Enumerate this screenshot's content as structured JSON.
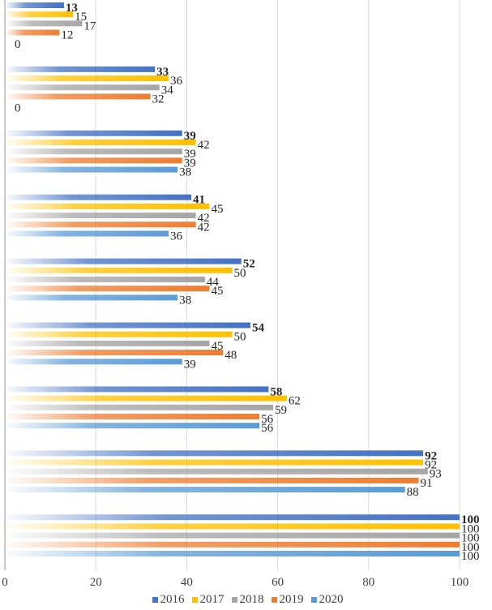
{
  "chart_data": {
    "type": "bar",
    "orientation": "horizontal",
    "title": "",
    "xlabel": "",
    "ylabel": "",
    "xlim": [
      0,
      100
    ],
    "x_ticks": [
      "0",
      "20",
      "40",
      "60",
      "80",
      "100"
    ],
    "grid": true,
    "legend_position": "bottom",
    "categories": [
      "",
      "",
      "",
      "",
      "",
      "",
      "",
      "",
      ""
    ],
    "series": [
      {
        "name": "2016",
        "color": "#4472C4",
        "bold_labels": true,
        "values": [
          13,
          33,
          39,
          41,
          52,
          54,
          58,
          92,
          100
        ]
      },
      {
        "name": "2017",
        "color": "#FFC000",
        "bold_labels": false,
        "values": [
          15,
          36,
          42,
          45,
          50,
          50,
          62,
          92,
          100
        ]
      },
      {
        "name": "2018",
        "color": "#A5A5A5",
        "bold_labels": false,
        "values": [
          17,
          34,
          39,
          42,
          44,
          45,
          59,
          93,
          100
        ]
      },
      {
        "name": "2019",
        "color": "#ED7D31",
        "bold_labels": false,
        "values": [
          12,
          32,
          39,
          42,
          45,
          48,
          56,
          91,
          100
        ]
      },
      {
        "name": "2020",
        "color": "#5B9BD5",
        "bold_labels": false,
        "values": [
          0,
          0,
          38,
          36,
          38,
          39,
          56,
          88,
          100
        ]
      }
    ]
  }
}
